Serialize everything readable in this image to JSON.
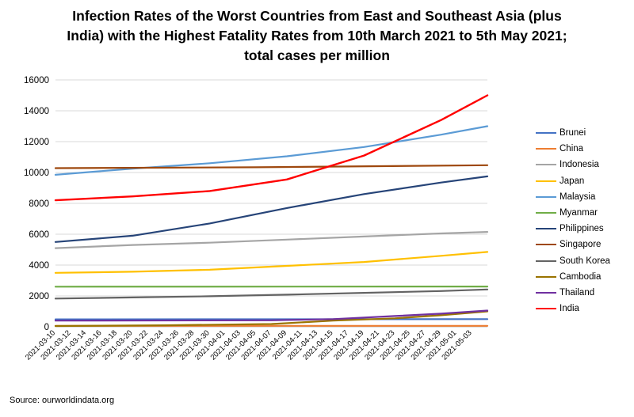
{
  "title_lines": [
    "Infection Rates of the Worst Countries from East and Southeast Asia (plus",
    "India) with the Highest Fatality Rates from 10th March 2021 to 5th May 2021;",
    "total cases per million"
  ],
  "source": "Source: ourworldindata.org",
  "chart_data": {
    "type": "line",
    "title": "Infection Rates of the Worst Countries from East and Southeast Asia (plus India) with the Highest Fatality Rates from 10th March 2021 to 5th May 2021; total cases per million",
    "xlabel": "",
    "ylabel": "",
    "x_start": "2021-03-10",
    "x_end": "2021-05-05",
    "x_tick_labels": [
      "2021-03-10",
      "2021-03-12",
      "2021-03-14",
      "2021-03-16",
      "2021-03-18",
      "2021-03-20",
      "2021-03-22",
      "2021-03-24",
      "2021-03-26",
      "2021-03-28",
      "2021-03-30",
      "2021-04-01",
      "2021-04-03",
      "2021-04-05",
      "2021-04-07",
      "2021-04-09",
      "2021-04-11",
      "2021-04-13",
      "2021-04-15",
      "2021-04-17",
      "2021-04-19",
      "2021-04-21",
      "2021-04-23",
      "2021-04-25",
      "2021-04-27",
      "2021-04-29",
      "2021-05-01",
      "2021-05-03"
    ],
    "ylim": [
      0,
      16000
    ],
    "y_ticks": [
      0,
      2000,
      4000,
      6000,
      8000,
      10000,
      12000,
      14000,
      16000
    ],
    "grid": true,
    "legend_position": "right",
    "series": [
      {
        "name": "Brunei",
        "color": "#4472C4",
        "points": [
          [
            "2021-03-10",
            480
          ],
          [
            "2021-05-05",
            500
          ]
        ]
      },
      {
        "name": "China",
        "color": "#ED7D31",
        "points": [
          [
            "2021-03-10",
            60
          ],
          [
            "2021-05-05",
            62
          ]
        ]
      },
      {
        "name": "Indonesia",
        "color": "#A5A5A5",
        "points": [
          [
            "2021-03-10",
            5100
          ],
          [
            "2021-03-20",
            5300
          ],
          [
            "2021-03-30",
            5450
          ],
          [
            "2021-04-09",
            5650
          ],
          [
            "2021-04-19",
            5850
          ],
          [
            "2021-04-29",
            6050
          ],
          [
            "2021-05-05",
            6150
          ]
        ]
      },
      {
        "name": "Japan",
        "color": "#FFC000",
        "points": [
          [
            "2021-03-10",
            3500
          ],
          [
            "2021-03-20",
            3570
          ],
          [
            "2021-03-30",
            3700
          ],
          [
            "2021-04-09",
            3950
          ],
          [
            "2021-04-19",
            4200
          ],
          [
            "2021-04-29",
            4600
          ],
          [
            "2021-05-05",
            4850
          ]
        ]
      },
      {
        "name": "Malaysia",
        "color": "#5B9BD5",
        "points": [
          [
            "2021-03-10",
            9850
          ],
          [
            "2021-03-20",
            10250
          ],
          [
            "2021-03-30",
            10600
          ],
          [
            "2021-04-09",
            11050
          ],
          [
            "2021-04-19",
            11650
          ],
          [
            "2021-04-29",
            12450
          ],
          [
            "2021-05-05",
            13000
          ]
        ]
      },
      {
        "name": "Myanmar",
        "color": "#70AD47",
        "points": [
          [
            "2021-03-10",
            2600
          ],
          [
            "2021-05-05",
            2610
          ]
        ]
      },
      {
        "name": "Philippines",
        "color": "#264478",
        "points": [
          [
            "2021-03-10",
            5500
          ],
          [
            "2021-03-20",
            5900
          ],
          [
            "2021-03-30",
            6700
          ],
          [
            "2021-04-09",
            7700
          ],
          [
            "2021-04-19",
            8600
          ],
          [
            "2021-04-29",
            9350
          ],
          [
            "2021-05-05",
            9750
          ]
        ]
      },
      {
        "name": "Singapore",
        "color": "#9E480E",
        "points": [
          [
            "2021-03-10",
            10280
          ],
          [
            "2021-04-05",
            10340
          ],
          [
            "2021-05-05",
            10470
          ]
        ]
      },
      {
        "name": "South Korea",
        "color": "#636363",
        "points": [
          [
            "2021-03-10",
            1830
          ],
          [
            "2021-03-20",
            1900
          ],
          [
            "2021-03-30",
            1980
          ],
          [
            "2021-04-09",
            2080
          ],
          [
            "2021-04-19",
            2200
          ],
          [
            "2021-04-29",
            2320
          ],
          [
            "2021-05-05",
            2420
          ]
        ]
      },
      {
        "name": "Cambodia",
        "color": "#997300",
        "points": [
          [
            "2021-03-10",
            50
          ],
          [
            "2021-03-24",
            100
          ],
          [
            "2021-04-07",
            180
          ],
          [
            "2021-04-15",
            400
          ],
          [
            "2021-04-23",
            550
          ],
          [
            "2021-04-29",
            750
          ],
          [
            "2021-05-05",
            1000
          ]
        ]
      },
      {
        "name": "Thailand",
        "color": "#7030A0",
        "points": [
          [
            "2021-03-10",
            400
          ],
          [
            "2021-04-07",
            420
          ],
          [
            "2021-04-15",
            500
          ],
          [
            "2021-04-23",
            700
          ],
          [
            "2021-04-29",
            850
          ],
          [
            "2021-05-05",
            1050
          ]
        ]
      },
      {
        "name": "India",
        "color": "#FF0000",
        "points": [
          [
            "2021-03-10",
            8200
          ],
          [
            "2021-03-20",
            8450
          ],
          [
            "2021-03-30",
            8800
          ],
          [
            "2021-04-09",
            9550
          ],
          [
            "2021-04-19",
            11100
          ],
          [
            "2021-04-29",
            13400
          ],
          [
            "2021-05-05",
            15000
          ]
        ]
      }
    ]
  }
}
